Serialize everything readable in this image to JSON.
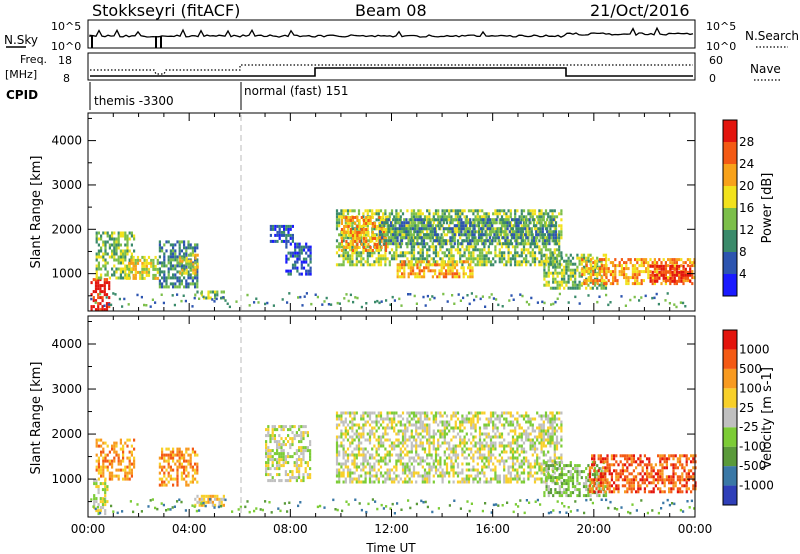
{
  "header": {
    "station": "Stokkseyri (fitACF)",
    "beam": "Beam 08",
    "date": "21/Oct/2016"
  },
  "control_panels": {
    "nsky_label": "N.Sky",
    "nsearch_label": "N.Search",
    "freq_label_line1": "Freq.",
    "freq_label_line2": "[MHz]",
    "nave_label": "Nave",
    "cpid_label": "CPID",
    "nsky_ticks": [
      "10^5",
      "10^0"
    ],
    "nsearch_ticks": [
      "10^5",
      "10^0"
    ],
    "freq_ticks": [
      "18",
      "8"
    ],
    "nave_ticks": [
      "60",
      "0"
    ],
    "cpid_programs": [
      {
        "name": "themis -3300",
        "start_hour": 0,
        "end_hour": 6
      },
      {
        "name": "normal (fast) 151",
        "start_hour": 6,
        "end_hour": 24
      }
    ]
  },
  "chart_data": [
    {
      "type": "heatmap",
      "panel": "power",
      "ylabel": "Slant Range [km]",
      "x_range_hours": [
        0,
        24
      ],
      "ylim": [
        180,
        4600
      ],
      "y_ticks": [
        1000,
        2000,
        3000,
        4000
      ],
      "colorbar": {
        "label": "Power [dB]",
        "ticks": [
          "4",
          "8",
          "12",
          "16",
          "20",
          "24",
          "28"
        ],
        "colors": [
          "#1a1aff",
          "#2d55b0",
          "#3a8a6a",
          "#7cbf4a",
          "#f2e21c",
          "#f8a21a",
          "#f45a14",
          "#e3140d"
        ]
      },
      "echo_regions": [
        {
          "t0": 0.1,
          "t1": 0.8,
          "r0": 200,
          "r1": 900,
          "level": 7
        },
        {
          "t0": 0.3,
          "t1": 1.8,
          "r0": 900,
          "r1": 1950,
          "level": 3
        },
        {
          "t0": 1.5,
          "t1": 2.8,
          "r0": 900,
          "r1": 1400,
          "level": 4
        },
        {
          "t0": 2.8,
          "t1": 4.3,
          "r0": 700,
          "r1": 1750,
          "level": 2
        },
        {
          "t0": 3.6,
          "t1": 4.3,
          "r0": 1000,
          "r1": 1450,
          "level": 4
        },
        {
          "t0": 4.2,
          "t1": 5.4,
          "r0": 420,
          "r1": 620,
          "level": 3
        },
        {
          "t0": 7.1,
          "t1": 8.1,
          "r0": 1750,
          "r1": 2100,
          "level": 1
        },
        {
          "t0": 7.8,
          "t1": 8.8,
          "r0": 1000,
          "r1": 1700,
          "level": 1
        },
        {
          "t0": 9.8,
          "t1": 18.7,
          "r0": 1200,
          "r1": 2450,
          "level": 3
        },
        {
          "t0": 10.0,
          "t1": 11.8,
          "r0": 1500,
          "r1": 2300,
          "level": 5
        },
        {
          "t0": 11.5,
          "t1": 18.5,
          "r0": 1700,
          "r1": 2250,
          "level": 2
        },
        {
          "t0": 12.2,
          "t1": 15.2,
          "r0": 950,
          "r1": 1300,
          "level": 5
        },
        {
          "t0": 18.0,
          "t1": 20.5,
          "r0": 650,
          "r1": 1450,
          "level": 3
        },
        {
          "t0": 19.5,
          "t1": 24.0,
          "r0": 750,
          "r1": 1350,
          "level": 5
        },
        {
          "t0": 22.2,
          "t1": 23.8,
          "r0": 850,
          "r1": 1200,
          "level": 7
        }
      ]
    },
    {
      "type": "heatmap",
      "panel": "velocity",
      "ylabel": "Slant Range [km]",
      "xlabel": "Time UT",
      "x_range_hours": [
        0,
        24
      ],
      "x_ticks": [
        "00:00",
        "04:00",
        "08:00",
        "12:00",
        "16:00",
        "20:00",
        "00:00"
      ],
      "ylim": [
        180,
        4600
      ],
      "y_ticks": [
        1000,
        2000,
        3000,
        4000
      ],
      "colorbar": {
        "label": "Velocity [m s-1]",
        "ticks": [
          "1000",
          "500",
          "100",
          "25",
          "-25",
          "-100",
          "-500",
          "-1000"
        ],
        "colors": [
          "#2f3fb8",
          "#3a78a6",
          "#5a9a3a",
          "#7ccc36",
          "#c0c0c0",
          "#f8d02a",
          "#f89a20",
          "#f45a14",
          "#e3140d"
        ]
      },
      "echo_regions": [
        {
          "t0": 0.2,
          "t1": 0.8,
          "r0": 250,
          "r1": 1000,
          "level": 4
        },
        {
          "t0": 0.3,
          "t1": 1.8,
          "r0": 1000,
          "r1": 1900,
          "level": 6
        },
        {
          "t0": 2.8,
          "t1": 4.3,
          "r0": 900,
          "r1": 1700,
          "level": 6
        },
        {
          "t0": 4.2,
          "t1": 5.4,
          "r0": 450,
          "r1": 650,
          "level": 5
        },
        {
          "t0": 7.0,
          "t1": 8.8,
          "r0": 1000,
          "r1": 2200,
          "level": 4
        },
        {
          "t0": 9.8,
          "t1": 18.7,
          "r0": 950,
          "r1": 2500,
          "level": 4
        },
        {
          "t0": 18.0,
          "t1": 20.5,
          "r0": 650,
          "r1": 1400,
          "level": 3
        },
        {
          "t0": 19.8,
          "t1": 24.0,
          "r0": 700,
          "r1": 1550,
          "level": 7
        }
      ]
    }
  ]
}
